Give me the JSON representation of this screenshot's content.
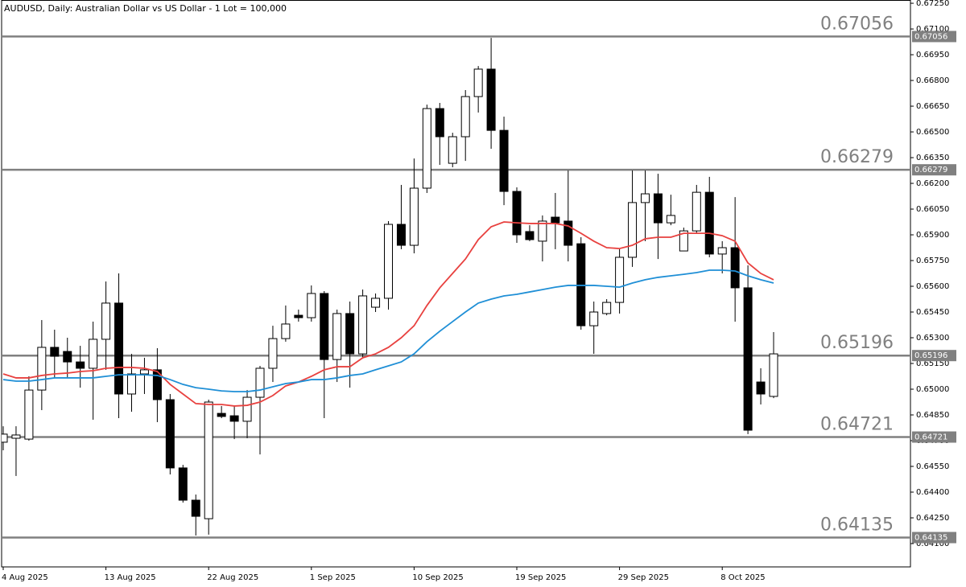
{
  "chart_data": {
    "type": "candlestick",
    "title": "AUDUSD, Daily:  Australian Dollar vs US Dollar - 1 Lot = 100,000",
    "categories": [
      "4 Aug 2025",
      null,
      null,
      null,
      null,
      null,
      null,
      null,
      "13 Aug 2025",
      null,
      null,
      null,
      null,
      null,
      null,
      null,
      "22 Aug 2025",
      null,
      null,
      null,
      null,
      null,
      null,
      null,
      "1 Sep 2025",
      null,
      null,
      null,
      null,
      null,
      null,
      null,
      "10 Sep 2025",
      null,
      null,
      null,
      null,
      null,
      null,
      null,
      "19 Sep 2025",
      null,
      null,
      null,
      null,
      null,
      null,
      null,
      "29 Sep 2025",
      null,
      null,
      null,
      null,
      null,
      null,
      null,
      "8 Oct 2025",
      null,
      null,
      null,
      null
    ],
    "open": [
      0.64691,
      0.64714,
      0.64709,
      0.64995,
      0.65244,
      0.6522,
      0.65159,
      0.65122,
      0.65291,
      0.65502,
      0.64972,
      0.65089,
      0.65113,
      0.64939,
      0.64541,
      0.64353,
      0.64245,
      0.64859,
      0.64845,
      0.64813,
      0.64953,
      0.65122,
      0.65295,
      0.65431,
      0.65417,
      0.65558,
      0.65173,
      0.65441,
      0.65206,
      0.65478,
      0.6553,
      0.65961,
      0.65839,
      0.66172,
      0.66636,
      0.66317,
      0.66472,
      0.66706,
      0.66866,
      0.66509,
      0.66153,
      0.65919,
      0.65863,
      0.66003,
      0.6598,
      0.65848,
      0.6537,
      0.65441,
      0.65506,
      0.65769,
      0.66088,
      0.66139,
      0.6597,
      0.65806,
      0.65923,
      0.66148,
      0.65788,
      0.65825,
      0.65591,
      0.65042,
      0.64958
    ],
    "high": [
      0.64784,
      0.64784,
      0.65075,
      0.65403,
      0.65347,
      0.653,
      0.65253,
      0.65394,
      0.65628,
      0.65675,
      0.65206,
      0.65183,
      0.65239,
      0.64972,
      0.64559,
      0.64386,
      0.64939,
      0.64902,
      0.64902,
      0.64995,
      0.65136,
      0.6537,
      0.65488,
      0.65464,
      0.65605,
      0.65572,
      0.65464,
      0.65511,
      0.65581,
      0.65558,
      0.6598,
      0.66191,
      0.66345,
      0.66659,
      0.66669,
      0.66495,
      0.66744,
      0.66884,
      0.67048,
      0.66589,
      0.66177,
      0.65956,
      0.66013,
      0.66144,
      0.66275,
      0.65886,
      0.65511,
      0.65525,
      0.65816,
      0.66275,
      0.66275,
      0.66256,
      0.66134,
      0.65942,
      0.66191,
      0.66238,
      0.65863,
      0.6612,
      0.65722,
      0.65122,
      0.65333
    ],
    "low": [
      0.64644,
      0.64494,
      0.647,
      0.64878,
      0.65066,
      0.65066,
      0.65009,
      0.64822,
      0.65113,
      0.64831,
      0.64869,
      0.64972,
      0.64808,
      0.64503,
      0.64339,
      0.64147,
      0.64152,
      0.64831,
      0.64709,
      0.64714,
      0.6462,
      0.65042,
      0.65277,
      0.65394,
      0.65394,
      0.64831,
      0.65042,
      0.65009,
      0.65183,
      0.6545,
      0.65464,
      0.65816,
      0.65792,
      0.66144,
      0.66308,
      0.66294,
      0.66331,
      0.66613,
      0.66402,
      0.66073,
      0.65853,
      0.65863,
      0.65745,
      0.65816,
      0.65745,
      0.65347,
      0.65206,
      0.65431,
      0.65441,
      0.65713,
      0.65863,
      0.65759,
      0.65956,
      0.65806,
      0.65909,
      0.65769,
      0.65675,
      0.65394,
      0.64738,
      0.64911,
      0.64948
    ],
    "close": [
      0.64738,
      0.64733,
      0.64995,
      0.65244,
      0.65192,
      0.65159,
      0.65122,
      0.65291,
      0.65502,
      0.64972,
      0.65089,
      0.65113,
      0.64939,
      0.64541,
      0.64353,
      0.64259,
      0.64925,
      0.64841,
      0.64813,
      0.64953,
      0.65122,
      0.65295,
      0.6538,
      0.65417,
      0.65558,
      0.65173,
      0.65441,
      0.65206,
      0.65544,
      0.6553,
      0.65961,
      0.65839,
      0.66172,
      0.66636,
      0.66472,
      0.66472,
      0.66706,
      0.66866,
      0.66509,
      0.66153,
      0.659,
      0.65872,
      0.6598,
      0.6597,
      0.65839,
      0.6537,
      0.6545,
      0.65506,
      0.65769,
      0.66088,
      0.66139,
      0.6597,
      0.66013,
      0.65923,
      0.66148,
      0.65788,
      0.65825,
      0.65591,
      0.64761,
      0.64972,
      0.65206
    ],
    "bull_color": "#ffffff",
    "bear_color": "#000000",
    "lines": [
      {
        "color": "#e8413f",
        "values": [
          0.65089,
          0.65066,
          0.65066,
          0.6508,
          0.65089,
          0.65094,
          0.65103,
          0.65108,
          0.65122,
          0.65127,
          0.65127,
          0.65122,
          0.65103,
          0.65028,
          0.64972,
          0.64916,
          0.64911,
          0.64911,
          0.64902,
          0.64906,
          0.64925,
          0.64963,
          0.65019,
          0.65042,
          0.65075,
          0.65113,
          0.65131,
          0.65131,
          0.65183,
          0.65206,
          0.65244,
          0.653,
          0.6537,
          0.65488,
          0.65591,
          0.65675,
          0.65759,
          0.65872,
          0.65947,
          0.65975,
          0.6597,
          0.65966,
          0.65966,
          0.65966,
          0.65952,
          0.65909,
          0.65863,
          0.65825,
          0.6582,
          0.65839,
          0.65877,
          0.65886,
          0.65886,
          0.65909,
          0.65909,
          0.65909,
          0.65895,
          0.65863,
          0.65736,
          0.65675,
          0.65638
        ]
      },
      {
        "color": "#1f8fd6",
        "values": [
          0.65056,
          0.65047,
          0.65047,
          0.65056,
          0.65066,
          0.65066,
          0.65066,
          0.65066,
          0.65075,
          0.65084,
          0.65084,
          0.65084,
          0.6508,
          0.65056,
          0.65028,
          0.65009,
          0.65,
          0.6499,
          0.64986,
          0.64986,
          0.64995,
          0.65014,
          0.65033,
          0.65042,
          0.65056,
          0.65056,
          0.65066,
          0.6508,
          0.65089,
          0.65113,
          0.65136,
          0.65159,
          0.65206,
          0.65277,
          0.65338,
          0.65394,
          0.6545,
          0.65502,
          0.65525,
          0.65544,
          0.65553,
          0.65567,
          0.65581,
          0.65595,
          0.65605,
          0.65605,
          0.65605,
          0.656,
          0.65595,
          0.65619,
          0.65638,
          0.65652,
          0.65661,
          0.6567,
          0.6568,
          0.65694,
          0.65694,
          0.65689,
          0.65661,
          0.65638,
          0.65619
        ]
      }
    ],
    "levels": [
      0.67056,
      0.66279,
      0.65196,
      0.64721,
      0.64135
    ],
    "level_color": "#808080",
    "ylim": [
      0.63964,
      0.67269
    ],
    "yticks": [
      {
        "value": 0.6725,
        "label": "0.67250"
      },
      {
        "value": 0.671,
        "label": "0.67100"
      },
      {
        "value": 0.6695,
        "label": "0.66950"
      },
      {
        "value": 0.668,
        "label": "0.66800"
      },
      {
        "value": 0.6665,
        "label": "0.66650"
      },
      {
        "value": 0.665,
        "label": "0.66500"
      },
      {
        "value": 0.6635,
        "label": "0.66350"
      },
      {
        "value": 0.662,
        "label": "0.66200"
      },
      {
        "value": 0.6605,
        "label": "0.66050"
      },
      {
        "value": 0.659,
        "label": "0.65900"
      },
      {
        "value": 0.6575,
        "label": "0.65750"
      },
      {
        "value": 0.656,
        "label": "0.65600"
      },
      {
        "value": 0.6545,
        "label": "0.65450"
      },
      {
        "value": 0.653,
        "label": "0.65300"
      },
      {
        "value": 0.6515,
        "label": "0.65150"
      },
      {
        "value": 0.65,
        "label": "0.65000"
      },
      {
        "value": 0.6485,
        "label": "0.64850"
      },
      {
        "value": 0.647,
        "label": "0.64700"
      },
      {
        "value": 0.6455,
        "label": "0.64550"
      },
      {
        "value": 0.644,
        "label": "0.64400"
      },
      {
        "value": 0.6425,
        "label": "0.64250"
      },
      {
        "value": 0.641,
        "label": "0.64100"
      }
    ]
  }
}
